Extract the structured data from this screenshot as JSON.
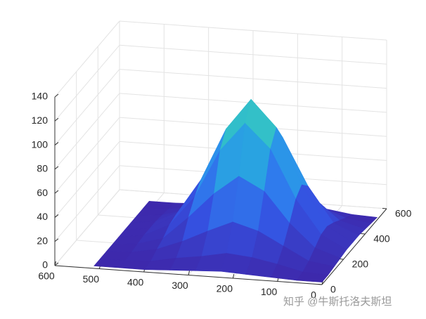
{
  "chart_data": {
    "type": "surface",
    "x": [
      0,
      57,
      114,
      171,
      228,
      284,
      341,
      398,
      455,
      512
    ],
    "y": [
      0,
      57,
      114,
      171,
      228,
      284,
      341,
      398,
      455,
      512
    ],
    "z": [
      [
        2,
        2,
        3,
        4,
        5,
        4,
        3,
        2,
        2,
        2
      ],
      [
        2,
        3,
        8,
        12,
        14,
        10,
        7,
        3,
        2,
        2
      ],
      [
        3,
        6,
        17,
        28,
        34,
        25,
        15,
        7,
        3,
        2
      ],
      [
        4,
        11,
        30,
        55,
        66,
        50,
        29,
        10,
        4,
        2
      ],
      [
        5,
        16,
        44,
        84,
        104,
        80,
        40,
        15,
        5,
        2
      ],
      [
        5,
        17,
        50,
        96,
        118,
        92,
        48,
        17,
        5,
        2
      ],
      [
        5,
        14,
        43,
        82,
        100,
        79,
        42,
        15,
        5,
        2
      ],
      [
        4,
        10,
        27,
        52,
        66,
        52,
        27,
        10,
        4,
        2
      ],
      [
        3,
        6,
        14,
        26,
        32,
        26,
        14,
        6,
        3,
        2
      ],
      [
        2,
        3,
        6,
        11,
        13,
        11,
        6,
        3,
        2,
        2
      ]
    ],
    "colormap": [
      "#3e26a8",
      "#3550e0",
      "#2e86f0",
      "#26b5d8",
      "#45d0b0"
    ],
    "xlim": [
      0,
      600
    ],
    "ylim": [
      0,
      600
    ],
    "zlim": [
      0,
      140
    ],
    "xticks": [
      0,
      100,
      200,
      300,
      400,
      500,
      600
    ],
    "yticks": [
      0,
      200,
      400,
      600
    ],
    "zticks": [
      0,
      20,
      40,
      60,
      80,
      100,
      120,
      140
    ],
    "grid": true,
    "watermark": "知乎 @牛斯托洛夫斯坦"
  }
}
